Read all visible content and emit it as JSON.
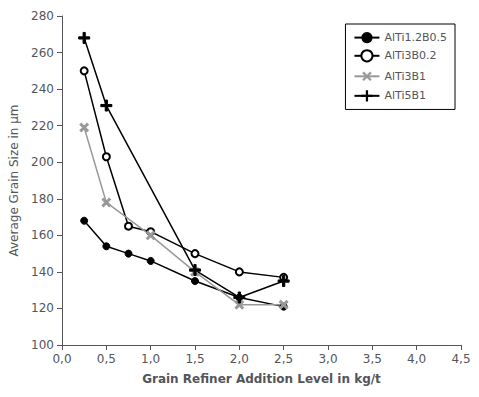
{
  "chart_data": {
    "type": "line",
    "xlabel": "Grain Refiner Addition Level in kg/t",
    "ylabel": "Average Grain Size in µm",
    "series": [
      {
        "name": "AlTi1.2B0.5",
        "color": "#000000",
        "marker": "circle",
        "x": [
          0.25,
          0.5,
          0.75,
          1.0,
          1.5,
          2.0,
          2.5
        ],
        "values": [
          168,
          154,
          150,
          146,
          135,
          126,
          121
        ]
      },
      {
        "name": "AlTi3B0.2",
        "color": "#000000",
        "marker": "open_circle",
        "x": [
          0.25,
          0.5,
          0.75,
          1.0,
          1.5,
          2.0,
          2.5
        ],
        "values": [
          250,
          203,
          165,
          162,
          150,
          140,
          137
        ]
      },
      {
        "name": "AlTi3B1",
        "color": "#999999",
        "marker": "x",
        "x": [
          0.25,
          0.5,
          1.0,
          1.5,
          2.0,
          2.5
        ],
        "values": [
          219,
          178,
          160,
          140,
          122,
          122
        ]
      },
      {
        "name": "AlTi5B1",
        "color": "#000000",
        "marker": "plus",
        "x": [
          0.25,
          0.5,
          1.5,
          2.0,
          2.5
        ],
        "values": [
          268,
          231,
          141,
          126,
          135
        ]
      }
    ],
    "xlim": [
      0,
      4.5
    ],
    "xticks": [
      {
        "value": 0.0,
        "label": "0,0"
      },
      {
        "value": 0.5,
        "label": "0,5"
      },
      {
        "value": 1.0,
        "label": "1,0"
      },
      {
        "value": 1.5,
        "label": "1,5"
      },
      {
        "value": 2.0,
        "label": "2,0"
      },
      {
        "value": 2.5,
        "label": "2,5"
      },
      {
        "value": 3.0,
        "label": "3,0"
      },
      {
        "value": 3.5,
        "label": "3,5"
      },
      {
        "value": 4.0,
        "label": "4,0"
      },
      {
        "value": 4.5,
        "label": "4,5"
      }
    ],
    "ylim": [
      100,
      280
    ],
    "yticks": [
      100,
      120,
      140,
      160,
      180,
      200,
      220,
      240,
      260,
      280
    ],
    "grid": false,
    "legend": "upper right"
  }
}
